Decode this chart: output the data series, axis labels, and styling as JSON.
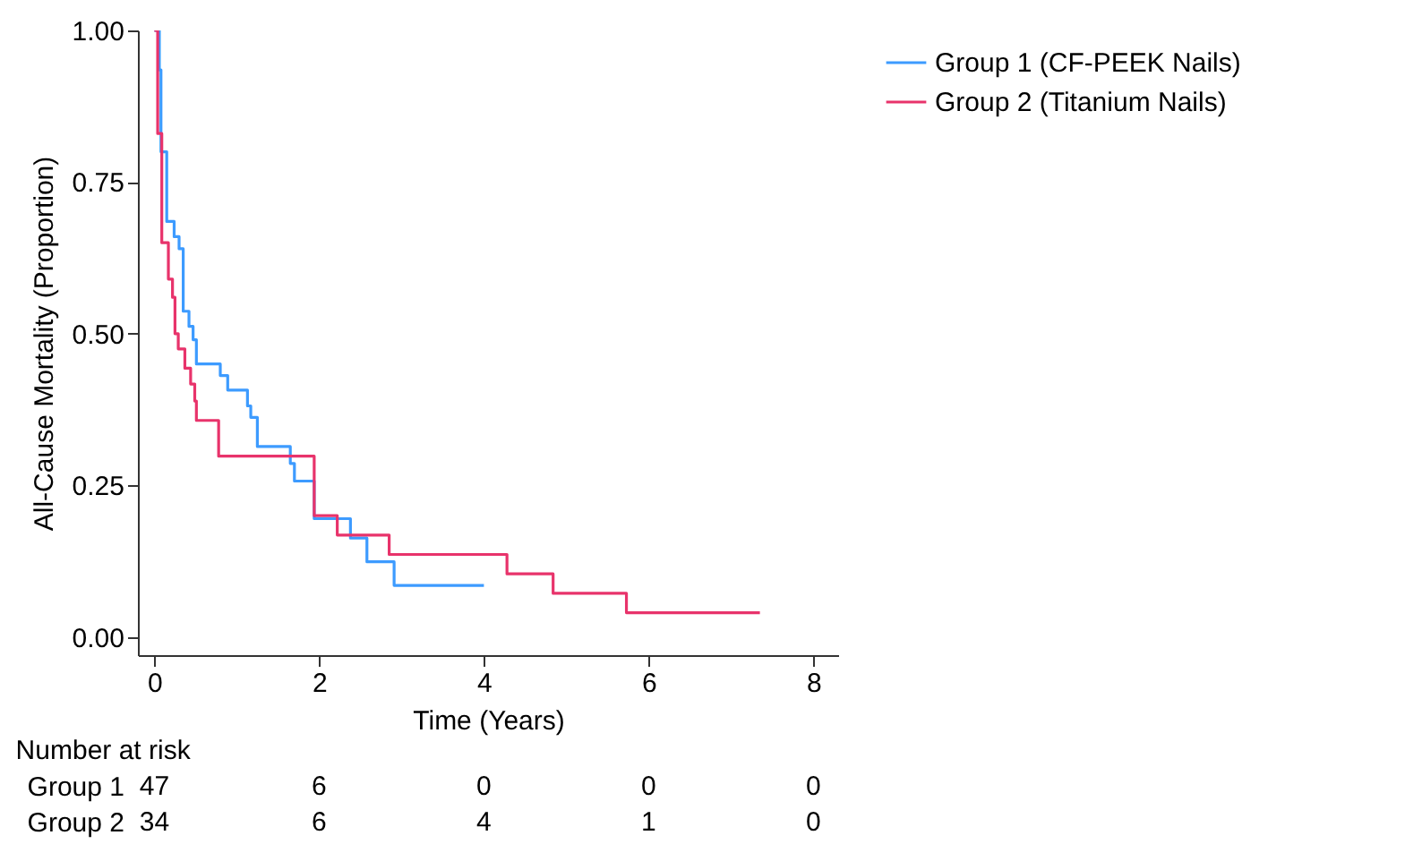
{
  "chart_data": {
    "type": "step",
    "xlabel": "Time (Years)",
    "ylabel": "All-Cause Mortality (Proportion)",
    "xlim": [
      -0.2,
      8.3
    ],
    "xticks": [
      0,
      2,
      4,
      6,
      8
    ],
    "ylim": [
      -0.03,
      1.0
    ],
    "yticks": [
      {
        "value": 0,
        "label": "0.00"
      },
      {
        "value": 0.25,
        "label": "0.25"
      },
      {
        "value": 0.5,
        "label": "0.50"
      },
      {
        "value": 0.75,
        "label": "0.75"
      },
      {
        "value": 1,
        "label": "1.00"
      }
    ],
    "legend": "right",
    "series": [
      {
        "name": "Group 1 (CF-PEEK Nails)",
        "color": "#3d9bff",
        "x": [
          0,
          0.06,
          0.08,
          0.15,
          0.24,
          0.3,
          0.35,
          0.42,
          0.47,
          0.51,
          0.8,
          0.89,
          1.13,
          1.17,
          1.25,
          1.65,
          1.7,
          1.94,
          2.38,
          2.58,
          2.91,
          4.0
        ],
        "values": [
          1.0,
          0.935,
          0.8,
          0.685,
          0.66,
          0.64,
          0.537,
          0.512,
          0.49,
          0.45,
          0.431,
          0.407,
          0.381,
          0.362,
          0.314,
          0.286,
          0.257,
          0.195,
          0.163,
          0.124,
          0.085,
          0.085
        ]
      },
      {
        "name": "Group 2 (Titanium Nails)",
        "color": "#e8336b",
        "x": [
          0,
          0.04,
          0.09,
          0.17,
          0.22,
          0.25,
          0.29,
          0.37,
          0.44,
          0.49,
          0.51,
          0.78,
          1.94,
          2.22,
          2.85,
          4.28,
          4.84,
          5.73,
          7.35
        ],
        "values": [
          1.0,
          0.83,
          0.65,
          0.59,
          0.56,
          0.5,
          0.475,
          0.443,
          0.417,
          0.389,
          0.357,
          0.298,
          0.2,
          0.168,
          0.136,
          0.104,
          0.072,
          0.04,
          0.04
        ]
      }
    ],
    "annotations": [
      "Number at risk",
      "Group 1",
      "47",
      "6",
      "0",
      "0",
      "0",
      "Group 2",
      "34",
      "6",
      "4",
      "1",
      "0"
    ]
  }
}
